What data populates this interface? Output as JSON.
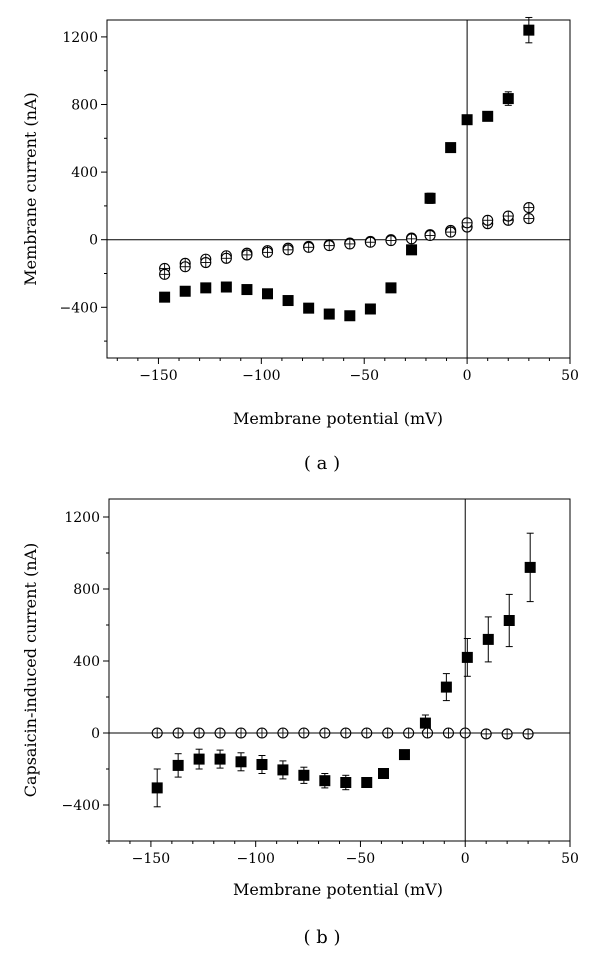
{
  "chart_data": [
    {
      "type": "scatter",
      "panel_label": "( a )",
      "xlabel": "Membrane potential (mV)",
      "ylabel": "Membrane current (nA)",
      "xlim": [
        -175,
        50
      ],
      "ylim": [
        -700,
        1300
      ],
      "xticks": [
        -150,
        -100,
        -50,
        0,
        50
      ],
      "xtick_labels": [
        "−150",
        "−100",
        "−50",
        "0",
        "50"
      ],
      "yticks": [
        -400,
        0,
        400,
        800,
        1200
      ],
      "ytick_labels": [
        "−400",
        "0",
        "400",
        "800",
        "1200"
      ],
      "x_minor_step": 10,
      "y_minor_step": 200,
      "zero_lines": true,
      "series": [
        {
          "marker": "filled-square",
          "x": [
            -147,
            -137,
            -127,
            -117,
            -107,
            -97,
            -87,
            -77,
            -67,
            -57,
            -47,
            -37,
            -27,
            -18,
            -8,
            0,
            10,
            20,
            30
          ],
          "y": [
            -340,
            -305,
            -285,
            -280,
            -295,
            -320,
            -360,
            -405,
            -440,
            -450,
            -410,
            -285,
            -60,
            245,
            545,
            710,
            730,
            835,
            1240
          ],
          "err": [
            0,
            0,
            0,
            0,
            0,
            0,
            0,
            0,
            0,
            0,
            0,
            0,
            25,
            30,
            20,
            20,
            25,
            40,
            75
          ]
        },
        {
          "marker": "open-circle",
          "x": [
            -147,
            -137,
            -127,
            -117,
            -107,
            -97,
            -87,
            -77,
            -67,
            -57,
            -47,
            -37,
            -27,
            -18,
            -8,
            0,
            10,
            20,
            30
          ],
          "y": [
            -170,
            -140,
            -115,
            -95,
            -80,
            -65,
            -50,
            -40,
            -30,
            -20,
            -10,
            0,
            10,
            30,
            55,
            75,
            95,
            115,
            190
          ],
          "err": [
            0,
            0,
            0,
            0,
            0,
            0,
            0,
            0,
            0,
            0,
            0,
            0,
            0,
            0,
            0,
            0,
            0,
            0,
            0
          ]
        },
        {
          "marker": "open-circle",
          "x": [
            -147,
            -137,
            -127,
            -117,
            -107,
            -97,
            -87,
            -77,
            -67,
            -57,
            -47,
            -37,
            -27,
            -18,
            -8,
            0,
            10,
            20,
            30
          ],
          "y": [
            -205,
            -160,
            -135,
            -110,
            -90,
            -75,
            -60,
            -45,
            -35,
            -25,
            -15,
            -5,
            5,
            25,
            45,
            100,
            115,
            140,
            125
          ],
          "err": [
            0,
            0,
            0,
            0,
            0,
            0,
            0,
            0,
            0,
            0,
            0,
            0,
            0,
            0,
            0,
            0,
            0,
            0,
            0
          ]
        }
      ]
    },
    {
      "type": "scatter",
      "panel_label": "( b )",
      "xlabel": "Membrane potential (mV)",
      "ylabel": "Capsaicin-induced current (nA)",
      "xlim": [
        -170,
        50
      ],
      "ylim": [
        -600,
        1300
      ],
      "xticks": [
        -150,
        -100,
        -50,
        0,
        50
      ],
      "xtick_labels": [
        "−150",
        "−100",
        "−50",
        "0",
        "50"
      ],
      "yticks": [
        -400,
        0,
        400,
        800,
        1200
      ],
      "ytick_labels": [
        "−400",
        "0",
        "400",
        "800",
        "1200"
      ],
      "x_minor_step": 10,
      "y_minor_step": 200,
      "zero_lines": true,
      "series": [
        {
          "marker": "filled-square",
          "x": [
            -147,
            -137,
            -127,
            -117,
            -107,
            -97,
            -87,
            -77,
            -67,
            -57,
            -47,
            -29,
            -39,
            -19,
            -9,
            1,
            11,
            21,
            31
          ],
          "y": [
            -305,
            -180,
            -145,
            -145,
            -160,
            -175,
            -205,
            -235,
            -265,
            -275,
            -275,
            -120,
            -225,
            55,
            255,
            420,
            520,
            625,
            920
          ],
          "err": [
            105,
            65,
            55,
            50,
            50,
            50,
            50,
            45,
            40,
            40,
            25,
            0,
            0,
            45,
            75,
            105,
            125,
            145,
            190
          ]
        },
        {
          "marker": "open-circle",
          "x": [
            -147,
            -137,
            -127,
            -117,
            -107,
            -97,
            -87,
            -77,
            -67,
            -57,
            -47,
            -37,
            -27,
            -18,
            -8,
            0,
            10,
            20,
            30
          ],
          "y": [
            0,
            0,
            0,
            0,
            0,
            0,
            0,
            0,
            0,
            0,
            0,
            0,
            0,
            0,
            0,
            0,
            -5,
            -5,
            -5
          ],
          "err": [
            0,
            0,
            0,
            0,
            0,
            0,
            0,
            0,
            0,
            0,
            0,
            0,
            0,
            0,
            0,
            0,
            0,
            0,
            0
          ]
        }
      ]
    }
  ]
}
